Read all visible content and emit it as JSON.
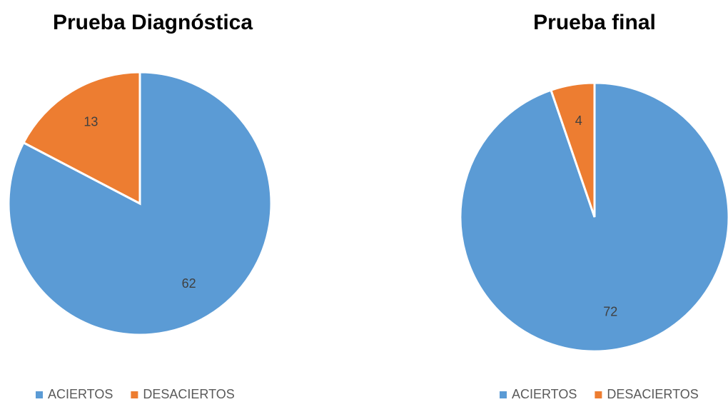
{
  "chart_data": [
    {
      "type": "pie",
      "title": "Prueba Diagnóstica",
      "categories": [
        "ACIERTOS",
        "DESACIERTOS"
      ],
      "values": [
        62,
        13
      ],
      "colors": [
        "#5b9bd5",
        "#ed7d31"
      ],
      "legend": "bottom"
    },
    {
      "type": "pie",
      "title": "Prueba final",
      "categories": [
        "ACIERTOS",
        "DESACIERTOS"
      ],
      "values": [
        72,
        4
      ],
      "colors": [
        "#5b9bd5",
        "#ed7d31"
      ],
      "legend": "bottom"
    }
  ]
}
